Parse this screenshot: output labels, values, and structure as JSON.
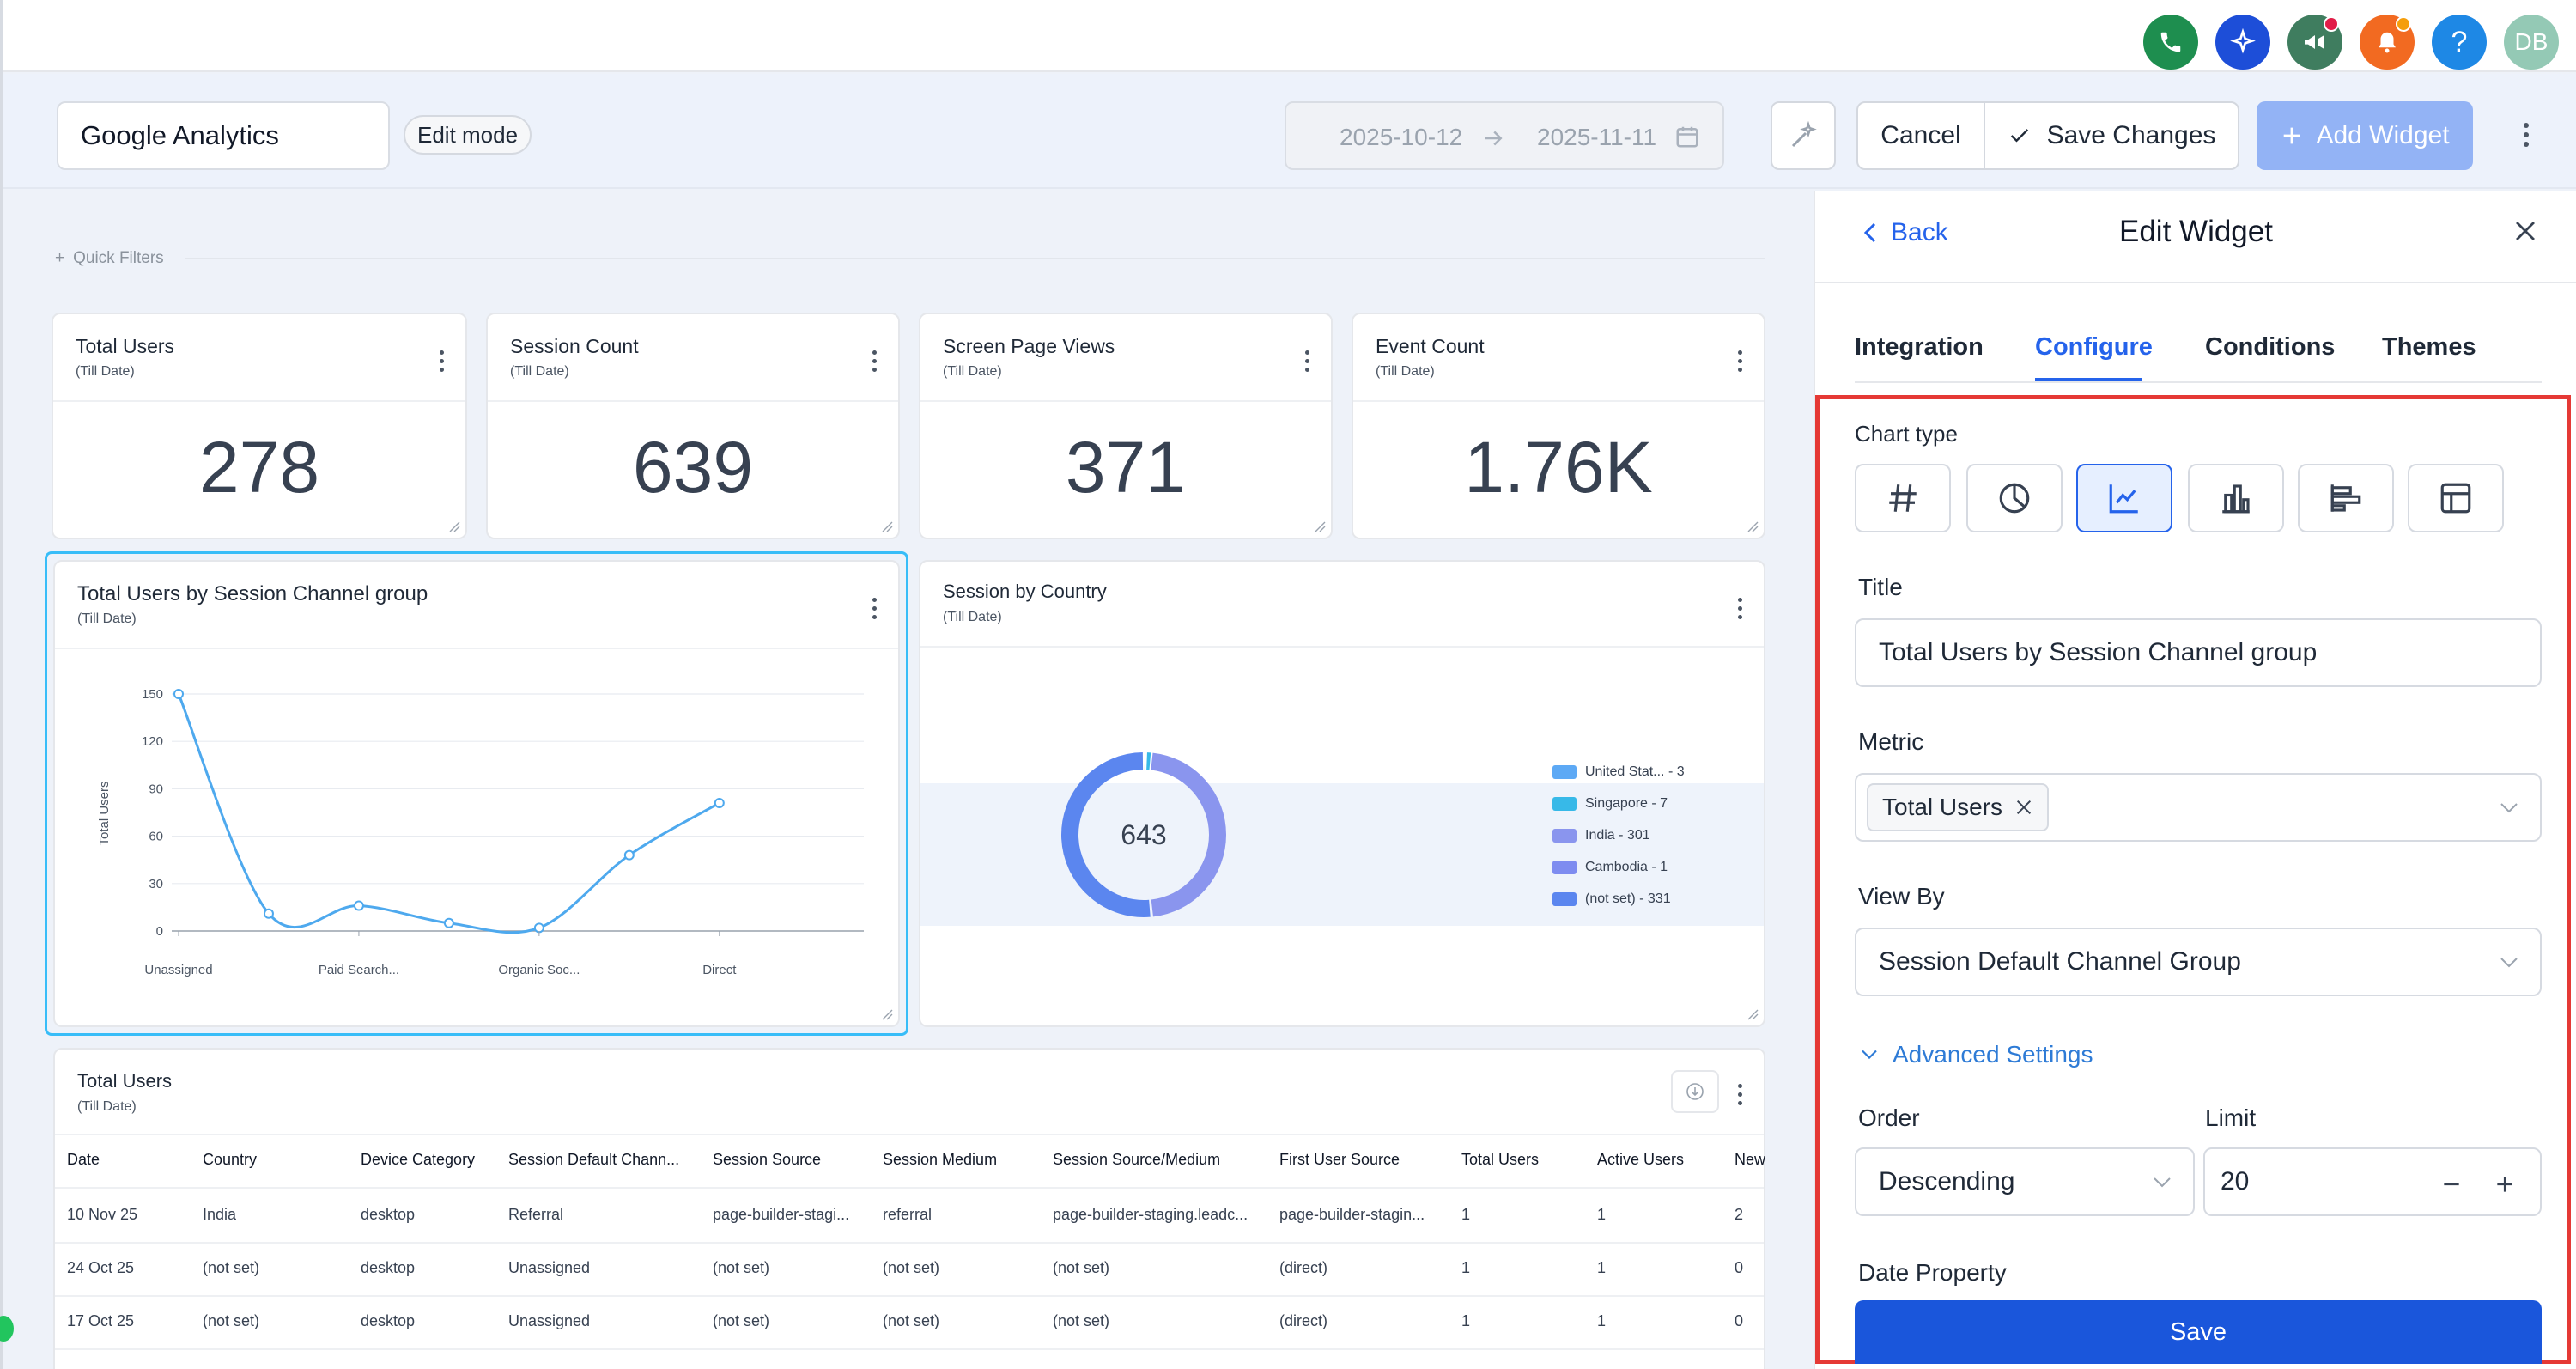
{
  "topbar": {
    "avatar_initials": "DB",
    "icons": [
      "phone-icon",
      "sparkle-icon",
      "megaphone-icon",
      "bell-icon",
      "help-icon"
    ]
  },
  "header": {
    "dashboard_title": "Google Analytics",
    "mode_badge": "Edit mode",
    "date_from": "2025-10-12",
    "date_to": "2025-11-11",
    "cancel": "Cancel",
    "save_changes": "Save Changes",
    "add_widget": "Add Widget"
  },
  "quick_filters": "Quick Filters",
  "kpis": [
    {
      "title": "Total Users",
      "sub": "(Till Date)",
      "value": "278"
    },
    {
      "title": "Session Count",
      "sub": "(Till Date)",
      "value": "639"
    },
    {
      "title": "Screen Page Views",
      "sub": "(Till Date)",
      "value": "371"
    },
    {
      "title": "Event Count",
      "sub": "(Till Date)",
      "value": "1.76K"
    }
  ],
  "line_widget": {
    "title": "Total Users by Session Channel group",
    "sub": "(Till Date)"
  },
  "donut_widget": {
    "title": "Session by Country",
    "sub": "(Till Date)",
    "center": "643",
    "colors": [
      "#5da9f5",
      "#37b9e8",
      "#8a95ee",
      "#7e8cf0",
      "#5b86ef"
    ]
  },
  "chart_data": [
    {
      "type": "line",
      "title": "Total Users by Session Channel group",
      "ylabel": "Total Users",
      "ylim": [
        0,
        150
      ],
      "yticks": [
        "150",
        "120",
        "90",
        "60",
        "30",
        "0"
      ],
      "x_tick_labels": [
        "Unassigned",
        "Paid Search...",
        "Organic Soc...",
        "Direct"
      ],
      "series": [
        {
          "values": [
            150,
            11,
            16,
            5,
            2,
            48,
            81
          ]
        }
      ]
    },
    {
      "type": "pie",
      "title": "Session by Country",
      "center_total": "643",
      "labels": [
        "United Stat... - 3",
        "Singapore - 7",
        "India - 301",
        "Cambodia - 1",
        "(not set) - 331"
      ],
      "values": [
        3,
        7,
        301,
        1,
        331
      ]
    }
  ],
  "table_widget": {
    "title": "Total Users",
    "sub": "(Till Date)",
    "columns": [
      "Date",
      "Country",
      "Device Category",
      "Session Default Chann...",
      "Session Source",
      "Session Medium",
      "Session Source/Medium",
      "First User Source",
      "Total Users",
      "Active Users",
      "New"
    ],
    "rows": [
      [
        "10 Nov 25",
        "India",
        "desktop",
        "Referral",
        "page-builder-stagi...",
        "referral",
        "page-builder-staging.leadc...",
        "page-builder-stagin...",
        "1",
        "1",
        "2"
      ],
      [
        "24 Oct 25",
        "(not set)",
        "desktop",
        "Unassigned",
        "(not set)",
        "(not set)",
        "(not set)",
        "(direct)",
        "1",
        "1",
        "0"
      ],
      [
        "17 Oct 25",
        "(not set)",
        "desktop",
        "Unassigned",
        "(not set)",
        "(not set)",
        "(not set)",
        "(direct)",
        "1",
        "1",
        "0"
      ]
    ]
  },
  "panel": {
    "back": "Back",
    "title": "Edit Widget",
    "tabs": [
      "Integration",
      "Configure",
      "Conditions",
      "Themes"
    ],
    "active_tab": "Configure",
    "chart_type_label": "Chart type",
    "chart_types": [
      "number-icon",
      "pie-chart-icon",
      "line-chart-icon",
      "bar-chart-icon",
      "horizontal-bar-chart-icon",
      "table-icon"
    ],
    "selected_chart_type": "line-chart-icon",
    "title_label": "Title",
    "title_value": "Total Users by Session Channel group",
    "metric_label": "Metric",
    "metric_chip": "Total Users",
    "viewby_label": "View By",
    "viewby_value": "Session Default Channel Group",
    "advanced": "Advanced Settings",
    "order_label": "Order",
    "order_value": "Descending",
    "limit_label": "Limit",
    "limit_value": "20",
    "date_property_label": "Date Property",
    "save": "Save"
  },
  "colors": {
    "accent": "#2563eb",
    "highlight": "#e53935",
    "line": "#4ea9ee"
  }
}
